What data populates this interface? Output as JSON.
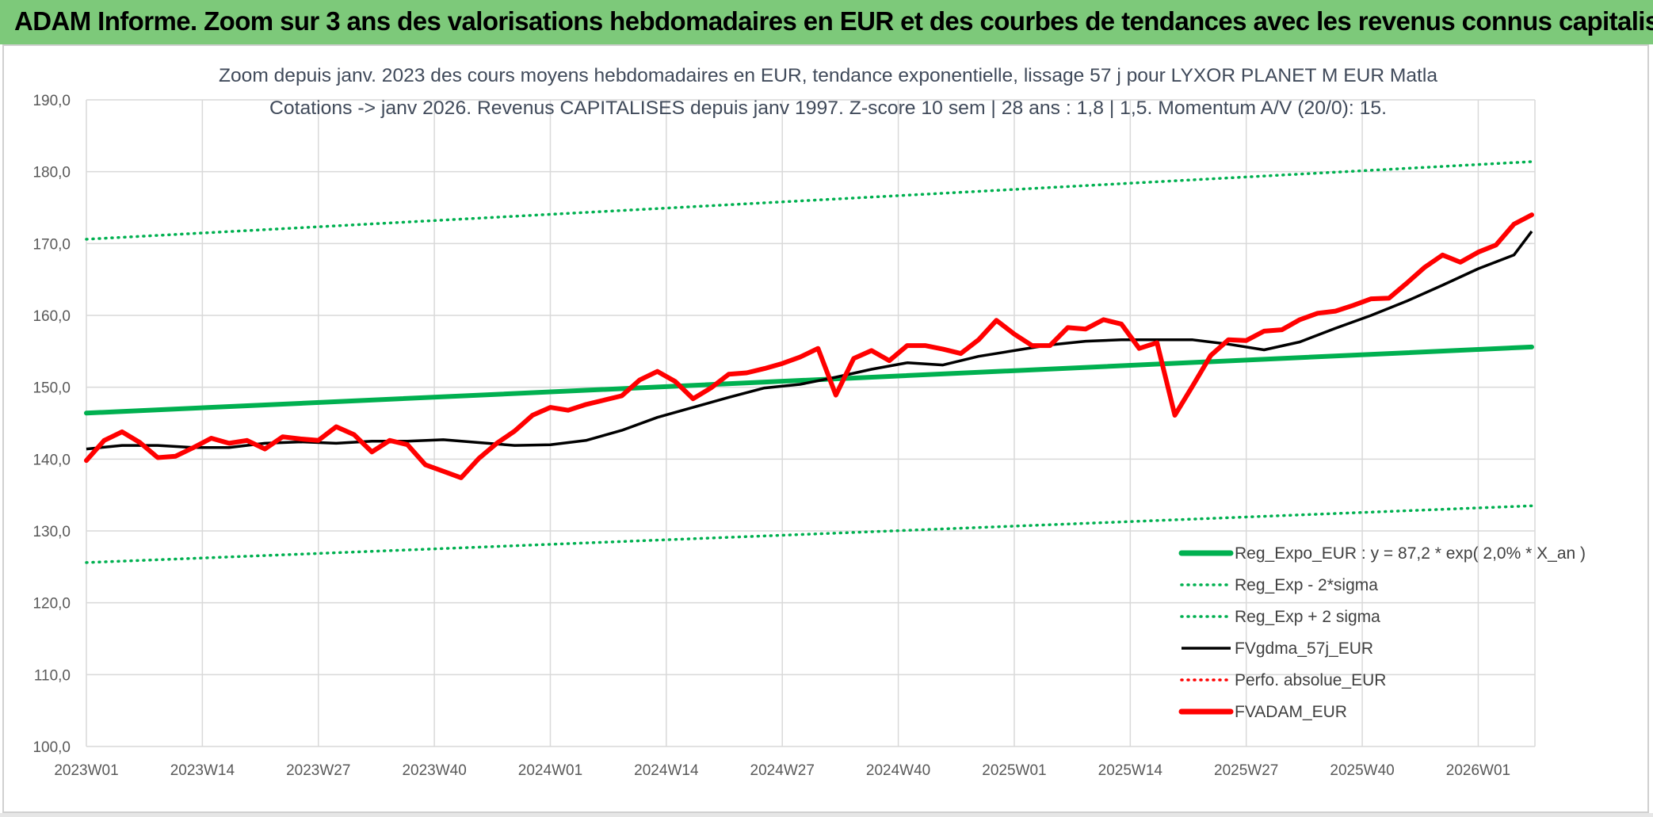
{
  "header": {
    "title": "ADAM Informe. Zoom sur 3 ans des valorisations hebdomadaires en EUR et des courbes de tendances avec les revenus connus capitalisés"
  },
  "chart_data": {
    "type": "line",
    "title_line1": "Zoom depuis janv. 2023 des cours moyens hebdomadaires en EUR, tendance exponentielle, lissage 57 j pour LYXOR PLANET M EUR Matla",
    "title_line2": "Cotations -> janv 2026. Revenus CAPITALISES depuis janv 1997. Z-score 10 sem | 28 ans : 1,8 | 1,5. Momentum A/V (20/0): 15.",
    "xlabel": "",
    "ylabel": "",
    "ylim": [
      100,
      190
    ],
    "grid": true,
    "legend_position": "bottom-right",
    "yticks": [
      "100,0",
      "110,0",
      "120,0",
      "130,0",
      "140,0",
      "150,0",
      "160,0",
      "170,0",
      "180,0",
      "190,0"
    ],
    "xtick_labels": [
      "2023W01",
      "2023W14",
      "2023W27",
      "2023W40",
      "2024W01",
      "2024W14",
      "2024W27",
      "2024W40",
      "2025W01",
      "2025W14",
      "2025W27",
      "2025W40",
      "2026W01"
    ],
    "x_range_weeks": [
      0,
      162
    ],
    "series": [
      {
        "name": "Reg_Expo_EUR : y = 87,2 * exp( 2,0% *  X_an )",
        "color": "#00b050",
        "style": "thick",
        "x": [
          0,
          162
        ],
        "values": [
          146.4,
          155.6
        ]
      },
      {
        "name": "Reg_Exp - 2*sigma",
        "color": "#00b050",
        "style": "dotted",
        "x": [
          0,
          162
        ],
        "values": [
          125.6,
          133.5
        ]
      },
      {
        "name": "Reg_Exp + 2 sigma",
        "color": "#00b050",
        "style": "dotted",
        "x": [
          0,
          162
        ],
        "values": [
          170.6,
          181.4
        ]
      },
      {
        "name": "FVgdma_57j_EUR",
        "color": "#000000",
        "style": "solid",
        "x": [
          0,
          4,
          8,
          12,
          16,
          20,
          24,
          28,
          32,
          36,
          40,
          44,
          48,
          52,
          56,
          60,
          64,
          68,
          72,
          76,
          80,
          84,
          88,
          92,
          96,
          100,
          104,
          108,
          112,
          116,
          120,
          124,
          128,
          132,
          136,
          140,
          144,
          148,
          152,
          156,
          160,
          162
        ],
        "values": [
          141.4,
          141.9,
          141.9,
          141.6,
          141.6,
          142.2,
          142.4,
          142.2,
          142.5,
          142.5,
          142.7,
          142.3,
          141.9,
          142.0,
          142.6,
          144.0,
          145.8,
          147.2,
          148.6,
          149.9,
          150.4,
          151.4,
          152.5,
          153.4,
          153.1,
          154.3,
          155.1,
          155.9,
          156.4,
          156.6,
          156.6,
          156.6,
          156.0,
          155.2,
          156.3,
          158.2,
          160.0,
          162.0,
          164.2,
          166.5,
          168.4,
          171.7
        ]
      },
      {
        "name": "Perfo. absolue_EUR",
        "color": "#ff0000",
        "style": "dotted",
        "x": [],
        "values": []
      },
      {
        "name": "FVADAM_EUR",
        "color": "#ff0000",
        "style": "thick",
        "x": [
          0,
          2,
          4,
          6,
          8,
          10,
          12,
          14,
          16,
          18,
          20,
          22,
          24,
          26,
          28,
          30,
          32,
          34,
          36,
          38,
          40,
          42,
          44,
          46,
          48,
          50,
          52,
          54,
          56,
          58,
          60,
          62,
          64,
          66,
          68,
          70,
          72,
          74,
          76,
          78,
          80,
          82,
          84,
          86,
          88,
          90,
          92,
          94,
          96,
          98,
          100,
          102,
          104,
          106,
          108,
          110,
          112,
          114,
          116,
          118,
          120,
          122,
          124,
          126,
          128,
          130,
          132,
          134,
          136,
          138,
          140,
          142,
          144,
          146,
          148,
          150,
          152,
          154,
          156,
          158,
          160,
          162
        ],
        "values": [
          139.8,
          142.6,
          143.8,
          142.3,
          140.2,
          140.4,
          141.6,
          142.9,
          142.2,
          142.6,
          141.4,
          143.1,
          142.8,
          142.6,
          144.5,
          143.4,
          141.0,
          142.6,
          142.0,
          139.2,
          138.3,
          137.4,
          140.1,
          142.2,
          143.9,
          146.1,
          147.2,
          146.8,
          147.6,
          148.2,
          148.8,
          151.0,
          152.2,
          150.8,
          148.4,
          149.9,
          151.8,
          152.0,
          152.6,
          153.3,
          154.2,
          155.4,
          148.9,
          154.0,
          155.1,
          153.7,
          155.8,
          155.8,
          155.3,
          154.7,
          156.6,
          159.3,
          157.4,
          155.8,
          155.8,
          158.3,
          158.1,
          159.4,
          158.8,
          155.4,
          156.2,
          146.1,
          150.2,
          154.4,
          156.6,
          156.5,
          157.8,
          158.0,
          159.4,
          160.3,
          160.6,
          161.4,
          162.3,
          162.4,
          164.5,
          166.7,
          168.4,
          167.4,
          168.8,
          169.8,
          172.7,
          174.0
        ]
      }
    ]
  }
}
